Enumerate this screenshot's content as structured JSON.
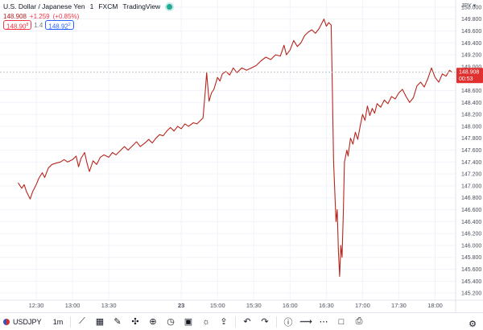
{
  "header": {
    "title": "U.S. Dollar / Japanese Yen",
    "interval": "1",
    "exchange": "FXCM",
    "brand": "TradingView",
    "ohlc_last": "148.908",
    "change": "+1.259",
    "change_pct": "(+0.85%)",
    "sell_price": "148.90",
    "sell_sup": "8",
    "buy_price": "148.92",
    "buy_sup": "2",
    "spread": "1.4"
  },
  "axis": {
    "currency": "JPY",
    "price_label": "148.908",
    "countdown": "00:53"
  },
  "toolbar": {
    "symbol": "USDJPY",
    "interval": "1m",
    "icons": [
      "line-chart-icon",
      "bar-style-icon",
      "brush-icon",
      "crosshair-icon",
      "add-icon",
      "alert-icon",
      "replay-icon",
      "lightbulb-icon",
      "share-icon",
      "undo-icon",
      "redo-icon",
      "info-icon",
      "trend-icon",
      "more-icon",
      "fullscreen-icon",
      "camera-icon"
    ]
  },
  "colors": {
    "line": "#b7261c",
    "grid": "#f0f3fa",
    "price_tag": "#e03030",
    "text": "#131722",
    "axis_text": "#4a4f5c"
  },
  "chart_data": {
    "type": "line",
    "symbol": "USDJPY",
    "x_ticks": [
      "12:30",
      "13:00",
      "13:30",
      "23",
      "15:00",
      "15:30",
      "16:00",
      "16:30",
      "17:00",
      "17:30",
      "18:00"
    ],
    "y_ticks": [
      145.2,
      145.4,
      145.6,
      145.8,
      146.0,
      146.2,
      146.4,
      146.6,
      146.8,
      147.0,
      147.2,
      147.4,
      147.6,
      147.8,
      148.0,
      148.2,
      148.4,
      148.6,
      148.8,
      149.0,
      149.2,
      149.4,
      149.6,
      149.8,
      150.0
    ],
    "ylim": [
      145.08,
      150.12
    ],
    "last_price": 148.908,
    "grid": true,
    "points": [
      {
        "t": "12:15",
        "v": 147.05
      },
      {
        "t": "12:18",
        "v": 146.96
      },
      {
        "t": "12:20",
        "v": 147.02
      },
      {
        "t": "12:22",
        "v": 146.9
      },
      {
        "t": "12:25",
        "v": 146.78
      },
      {
        "t": "12:27",
        "v": 146.9
      },
      {
        "t": "12:30",
        "v": 147.02
      },
      {
        "t": "12:32",
        "v": 147.12
      },
      {
        "t": "12:35",
        "v": 147.22
      },
      {
        "t": "12:37",
        "v": 147.14
      },
      {
        "t": "12:40",
        "v": 147.3
      },
      {
        "t": "12:43",
        "v": 147.36
      },
      {
        "t": "12:46",
        "v": 147.38
      },
      {
        "t": "12:50",
        "v": 147.4
      },
      {
        "t": "12:53",
        "v": 147.44
      },
      {
        "t": "12:56",
        "v": 147.4
      },
      {
        "t": "13:00",
        "v": 147.44
      },
      {
        "t": "13:03",
        "v": 147.5
      },
      {
        "t": "13:05",
        "v": 147.32
      },
      {
        "t": "13:07",
        "v": 147.46
      },
      {
        "t": "13:10",
        "v": 147.56
      },
      {
        "t": "13:12",
        "v": 147.38
      },
      {
        "t": "13:14",
        "v": 147.24
      },
      {
        "t": "13:17",
        "v": 147.42
      },
      {
        "t": "13:20",
        "v": 147.36
      },
      {
        "t": "13:23",
        "v": 147.48
      },
      {
        "t": "13:26",
        "v": 147.52
      },
      {
        "t": "13:30",
        "v": 147.48
      },
      {
        "t": "13:33",
        "v": 147.56
      },
      {
        "t": "13:36",
        "v": 147.52
      },
      {
        "t": "13:40",
        "v": 147.6
      },
      {
        "t": "13:43",
        "v": 147.66
      },
      {
        "t": "13:46",
        "v": 147.6
      },
      {
        "t": "13:50",
        "v": 147.68
      },
      {
        "t": "13:53",
        "v": 147.74
      },
      {
        "t": "13:56",
        "v": 147.66
      },
      {
        "t": "14:00",
        "v": 147.72
      },
      {
        "t": "14:03",
        "v": 147.78
      },
      {
        "t": "14:06",
        "v": 147.72
      },
      {
        "t": "14:09",
        "v": 147.8
      },
      {
        "t": "14:12",
        "v": 147.86
      },
      {
        "t": "14:15",
        "v": 147.84
      },
      {
        "t": "14:18",
        "v": 147.92
      },
      {
        "t": "14:21",
        "v": 147.98
      },
      {
        "t": "14:24",
        "v": 147.92
      },
      {
        "t": "14:27",
        "v": 148.0
      },
      {
        "t": "14:30",
        "v": 147.96
      },
      {
        "t": "14:33",
        "v": 148.04
      },
      {
        "t": "14:36",
        "v": 148.0
      },
      {
        "t": "14:40",
        "v": 148.06
      },
      {
        "t": "14:43",
        "v": 148.04
      },
      {
        "t": "14:46",
        "v": 148.1
      },
      {
        "t": "14:48",
        "v": 148.14
      },
      {
        "t": "14:50",
        "v": 148.62
      },
      {
        "t": "14:51",
        "v": 148.9
      },
      {
        "t": "14:53",
        "v": 148.42
      },
      {
        "t": "14:55",
        "v": 148.56
      },
      {
        "t": "14:57",
        "v": 148.62
      },
      {
        "t": "15:00",
        "v": 148.82
      },
      {
        "t": "15:02",
        "v": 148.76
      },
      {
        "t": "15:04",
        "v": 148.88
      },
      {
        "t": "15:07",
        "v": 148.92
      },
      {
        "t": "15:10",
        "v": 148.86
      },
      {
        "t": "15:13",
        "v": 148.98
      },
      {
        "t": "15:16",
        "v": 148.9
      },
      {
        "t": "15:20",
        "v": 148.98
      },
      {
        "t": "15:24",
        "v": 148.94
      },
      {
        "t": "15:28",
        "v": 148.98
      },
      {
        "t": "15:32",
        "v": 149.02
      },
      {
        "t": "15:36",
        "v": 149.1
      },
      {
        "t": "15:40",
        "v": 149.16
      },
      {
        "t": "15:44",
        "v": 149.12
      },
      {
        "t": "15:48",
        "v": 149.2
      },
      {
        "t": "15:52",
        "v": 149.18
      },
      {
        "t": "15:55",
        "v": 149.36
      },
      {
        "t": "15:57",
        "v": 149.2
      },
      {
        "t": "16:00",
        "v": 149.28
      },
      {
        "t": "16:03",
        "v": 149.44
      },
      {
        "t": "16:06",
        "v": 149.34
      },
      {
        "t": "16:09",
        "v": 149.4
      },
      {
        "t": "16:12",
        "v": 149.52
      },
      {
        "t": "16:15",
        "v": 149.58
      },
      {
        "t": "16:18",
        "v": 149.62
      },
      {
        "t": "16:21",
        "v": 149.56
      },
      {
        "t": "16:24",
        "v": 149.64
      },
      {
        "t": "16:26",
        "v": 149.72
      },
      {
        "t": "16:28",
        "v": 149.8
      },
      {
        "t": "16:30",
        "v": 149.68
      },
      {
        "t": "16:32",
        "v": 149.74
      },
      {
        "t": "16:34",
        "v": 149.7
      },
      {
        "t": "16:35",
        "v": 148.6
      },
      {
        "t": "16:36",
        "v": 147.4
      },
      {
        "t": "16:37",
        "v": 146.9
      },
      {
        "t": "16:38",
        "v": 146.4
      },
      {
        "t": "16:39",
        "v": 146.6
      },
      {
        "t": "16:40",
        "v": 145.9
      },
      {
        "t": "16:41",
        "v": 145.48
      },
      {
        "t": "16:42",
        "v": 146.0
      },
      {
        "t": "16:43",
        "v": 145.8
      },
      {
        "t": "16:44",
        "v": 146.5
      },
      {
        "t": "16:45",
        "v": 147.4
      },
      {
        "t": "16:47",
        "v": 147.6
      },
      {
        "t": "16:48",
        "v": 147.5
      },
      {
        "t": "16:50",
        "v": 147.8
      },
      {
        "t": "16:52",
        "v": 147.7
      },
      {
        "t": "16:54",
        "v": 147.9
      },
      {
        "t": "16:56",
        "v": 147.78
      },
      {
        "t": "16:58",
        "v": 148.0
      },
      {
        "t": "17:00",
        "v": 148.2
      },
      {
        "t": "17:02",
        "v": 148.1
      },
      {
        "t": "17:04",
        "v": 148.34
      },
      {
        "t": "17:06",
        "v": 148.18
      },
      {
        "t": "17:08",
        "v": 148.3
      },
      {
        "t": "17:10",
        "v": 148.22
      },
      {
        "t": "17:12",
        "v": 148.38
      },
      {
        "t": "17:15",
        "v": 148.32
      },
      {
        "t": "17:18",
        "v": 148.44
      },
      {
        "t": "17:21",
        "v": 148.38
      },
      {
        "t": "17:24",
        "v": 148.5
      },
      {
        "t": "17:27",
        "v": 148.46
      },
      {
        "t": "17:30",
        "v": 148.56
      },
      {
        "t": "17:33",
        "v": 148.62
      },
      {
        "t": "17:36",
        "v": 148.5
      },
      {
        "t": "17:39",
        "v": 148.4
      },
      {
        "t": "17:42",
        "v": 148.48
      },
      {
        "t": "17:45",
        "v": 148.68
      },
      {
        "t": "17:48",
        "v": 148.74
      },
      {
        "t": "17:51",
        "v": 148.66
      },
      {
        "t": "17:54",
        "v": 148.8
      },
      {
        "t": "17:57",
        "v": 148.98
      },
      {
        "t": "18:00",
        "v": 148.82
      },
      {
        "t": "18:03",
        "v": 148.74
      },
      {
        "t": "18:06",
        "v": 148.88
      },
      {
        "t": "18:09",
        "v": 148.84
      },
      {
        "t": "18:12",
        "v": 148.94
      },
      {
        "t": "18:14",
        "v": 148.908
      }
    ]
  }
}
